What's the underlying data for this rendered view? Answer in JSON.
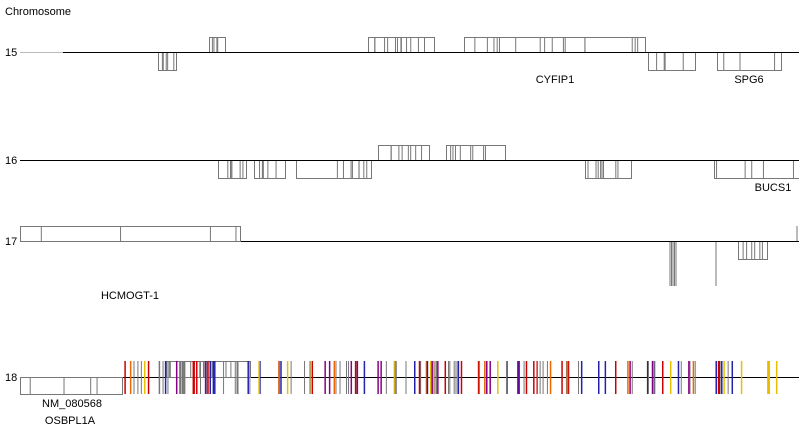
{
  "header": {
    "title": "Chromosome"
  },
  "tracks": [
    {
      "label": "15",
      "genes": [
        "CYFIP1",
        "SPG6"
      ]
    },
    {
      "label": "16",
      "genes": [
        "BUCS1"
      ]
    },
    {
      "label": "17",
      "genes": [
        "HCMOGT-1"
      ]
    },
    {
      "label": "18",
      "genes": [
        "NM_080568",
        "OSBPL1A"
      ]
    }
  ]
}
